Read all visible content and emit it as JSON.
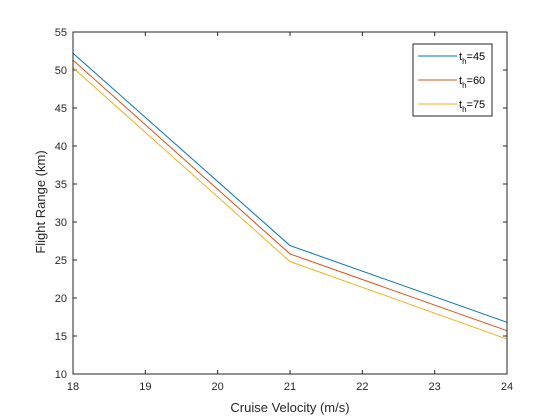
{
  "chart_data": {
    "type": "line",
    "title": "",
    "xlabel": "Cruise Velocity (m/s)",
    "ylabel": "Flight Range (km)",
    "xlim": [
      18,
      24
    ],
    "ylim": [
      10,
      55
    ],
    "xticks": [
      18,
      19,
      20,
      21,
      22,
      23,
      24
    ],
    "yticks": [
      10,
      15,
      20,
      25,
      30,
      35,
      40,
      45,
      50,
      55
    ],
    "grid": false,
    "legend_position": "top-right",
    "x": [
      18,
      21,
      24
    ],
    "series": [
      {
        "name_base": "t",
        "name_sub": "h",
        "name_suffix": "=45",
        "color": "#0072BD",
        "values": [
          52.2,
          26.9,
          16.8
        ]
      },
      {
        "name_base": "t",
        "name_sub": "h",
        "name_suffix": "=60",
        "color": "#D95319",
        "values": [
          51.3,
          25.8,
          15.7
        ]
      },
      {
        "name_base": "t",
        "name_sub": "h",
        "name_suffix": "=75",
        "color": "#EDB120",
        "values": [
          50.3,
          24.8,
          14.6
        ]
      }
    ]
  }
}
